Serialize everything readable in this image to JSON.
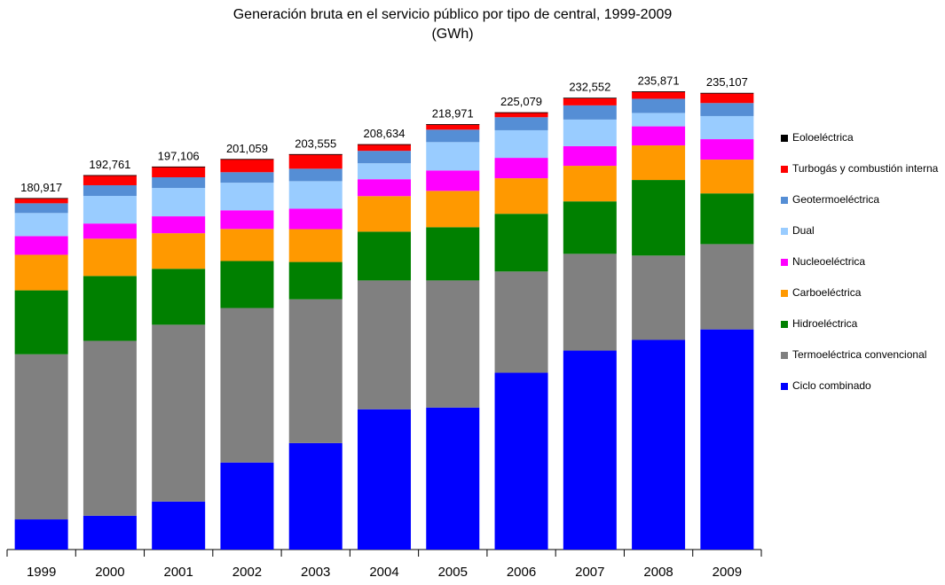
{
  "chart_data": {
    "type": "stacked_bar",
    "title": "Generación bruta en el servicio público por tipo de central, 1999-2009",
    "subtitle": "(GWh)",
    "categories": [
      "1999",
      "2000",
      "2001",
      "2002",
      "2003",
      "2004",
      "2005",
      "2006",
      "2007",
      "2008",
      "2009"
    ],
    "series": [
      {
        "name": "Ciclo combinado",
        "color": "#0000ff",
        "values": [
          15500,
          17400,
          24700,
          44800,
          54800,
          72200,
          73100,
          91000,
          102400,
          107900,
          113300
        ]
      },
      {
        "name": "Termoeléctrica convencional",
        "color": "#808080",
        "values": [
          85000,
          90000,
          91000,
          79500,
          74000,
          66300,
          65400,
          52100,
          49800,
          43400,
          43900
        ]
      },
      {
        "name": "Hidroeléctrica",
        "color": "#008000",
        "values": [
          32900,
          33400,
          28800,
          24200,
          19200,
          25100,
          27400,
          29700,
          27000,
          38900,
          26100
        ]
      },
      {
        "name": "Carboeléctrica",
        "color": "#ff9900",
        "values": [
          18300,
          19200,
          18300,
          16500,
          16900,
          18300,
          18700,
          18300,
          18300,
          17800,
          17400
        ]
      },
      {
        "name": "Nucleoeléctrica",
        "color": "#ff00ff",
        "values": [
          9600,
          7800,
          8700,
          9600,
          10500,
          8700,
          10500,
          10500,
          10100,
          9800,
          10500
        ]
      },
      {
        "name": "Dual",
        "color": "#99ccff",
        "values": [
          11900,
          14200,
          14600,
          14200,
          14200,
          8200,
          14600,
          14200,
          13700,
          6900,
          11900
        ]
      },
      {
        "name": "Geotermoeléctrica",
        "color": "#558ed5",
        "values": [
          5000,
          5500,
          5500,
          5400,
          6400,
          6400,
          6400,
          6700,
          7300,
          7300,
          6700
        ]
      },
      {
        "name": "Turbogás y combustión interna",
        "color": "#ff0000",
        "values": [
          2700,
          5200,
          5500,
          6800,
          7500,
          3400,
          2800,
          2500,
          3700,
          3600,
          5000
        ]
      },
      {
        "name": "Eoloeléctrica",
        "color": "#000000",
        "values": [
          6,
          8,
          7,
          7,
          5,
          6,
          5,
          45,
          250,
          250,
          250
        ]
      }
    ],
    "totals": [
      180917,
      192761,
      197106,
      201059,
      203555,
      208634,
      218971,
      225079,
      232552,
      235871,
      235107
    ],
    "total_labels": [
      "180,917",
      "192,761",
      "197,106",
      "201,059",
      "203,555",
      "208,634",
      "218,971",
      "225,079",
      "232,552",
      "235,871",
      "235,107"
    ]
  }
}
